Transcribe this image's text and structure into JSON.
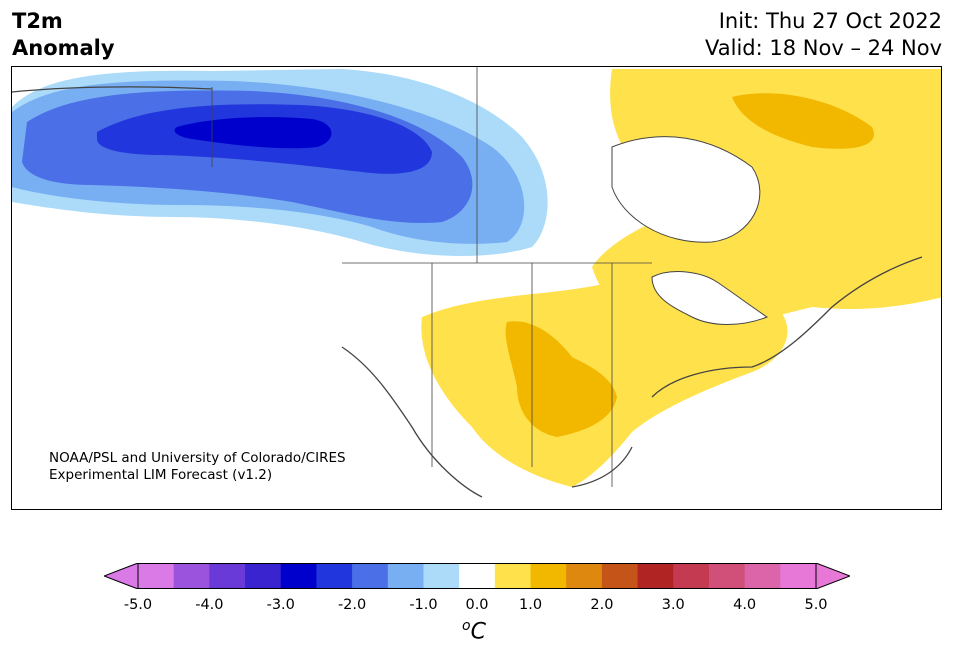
{
  "title": {
    "variable": "T2m",
    "subtitle": "Anomaly",
    "init": "Init: Thu 27 Oct 2022",
    "valid": "Valid: 18 Nov – 24 Nov"
  },
  "credit": {
    "line1": "NOAA/PSL and University of Colorado/CIRES",
    "line2": "Experimental LIM Forecast (v1.2)"
  },
  "colorbar": {
    "unit_base": "C",
    "unit_sup": "o",
    "ticks": [
      "-5.0",
      "-4.0",
      "-3.0",
      "-2.0",
      "-1.0",
      "0.0",
      "1.0",
      "2.0",
      "3.0",
      "4.0",
      "5.0"
    ],
    "levels": [
      -5.0,
      -4.5,
      -4.0,
      -3.5,
      -3.0,
      -2.5,
      -2.0,
      -1.5,
      -1.0,
      -0.5,
      0.5,
      1.0,
      1.5,
      2.0,
      2.5,
      3.0,
      3.5,
      4.0,
      4.5,
      5.0
    ],
    "colors": [
      "#d97ae6",
      "#9b52dc",
      "#6a3ad8",
      "#3a24d0",
      "#0000cc",
      "#2136dc",
      "#4b6fe6",
      "#78aef2",
      "#abdbf9",
      "#ffffff",
      "#ffe14c",
      "#f2b800",
      "#de8810",
      "#c45418",
      "#b02424",
      "#c43a50",
      "#d0507a",
      "#dc64a8",
      "#e878d8"
    ],
    "under_color": "#d97ae6",
    "over_color": "#e878d8"
  },
  "map": {
    "region": "North America",
    "regions": [
      {
        "name": "cold-anomaly-alaska-western-canada",
        "level": "-3.0 to -2.5"
      },
      {
        "name": "cold-anomaly-pacific-northwest",
        "level": "-1.0 to -0.5"
      },
      {
        "name": "warm-anomaly-southern-plains",
        "level": "1.0 to 1.5"
      },
      {
        "name": "warm-anomaly-eastern-canada",
        "level": "0.5 to 1.0"
      }
    ]
  }
}
